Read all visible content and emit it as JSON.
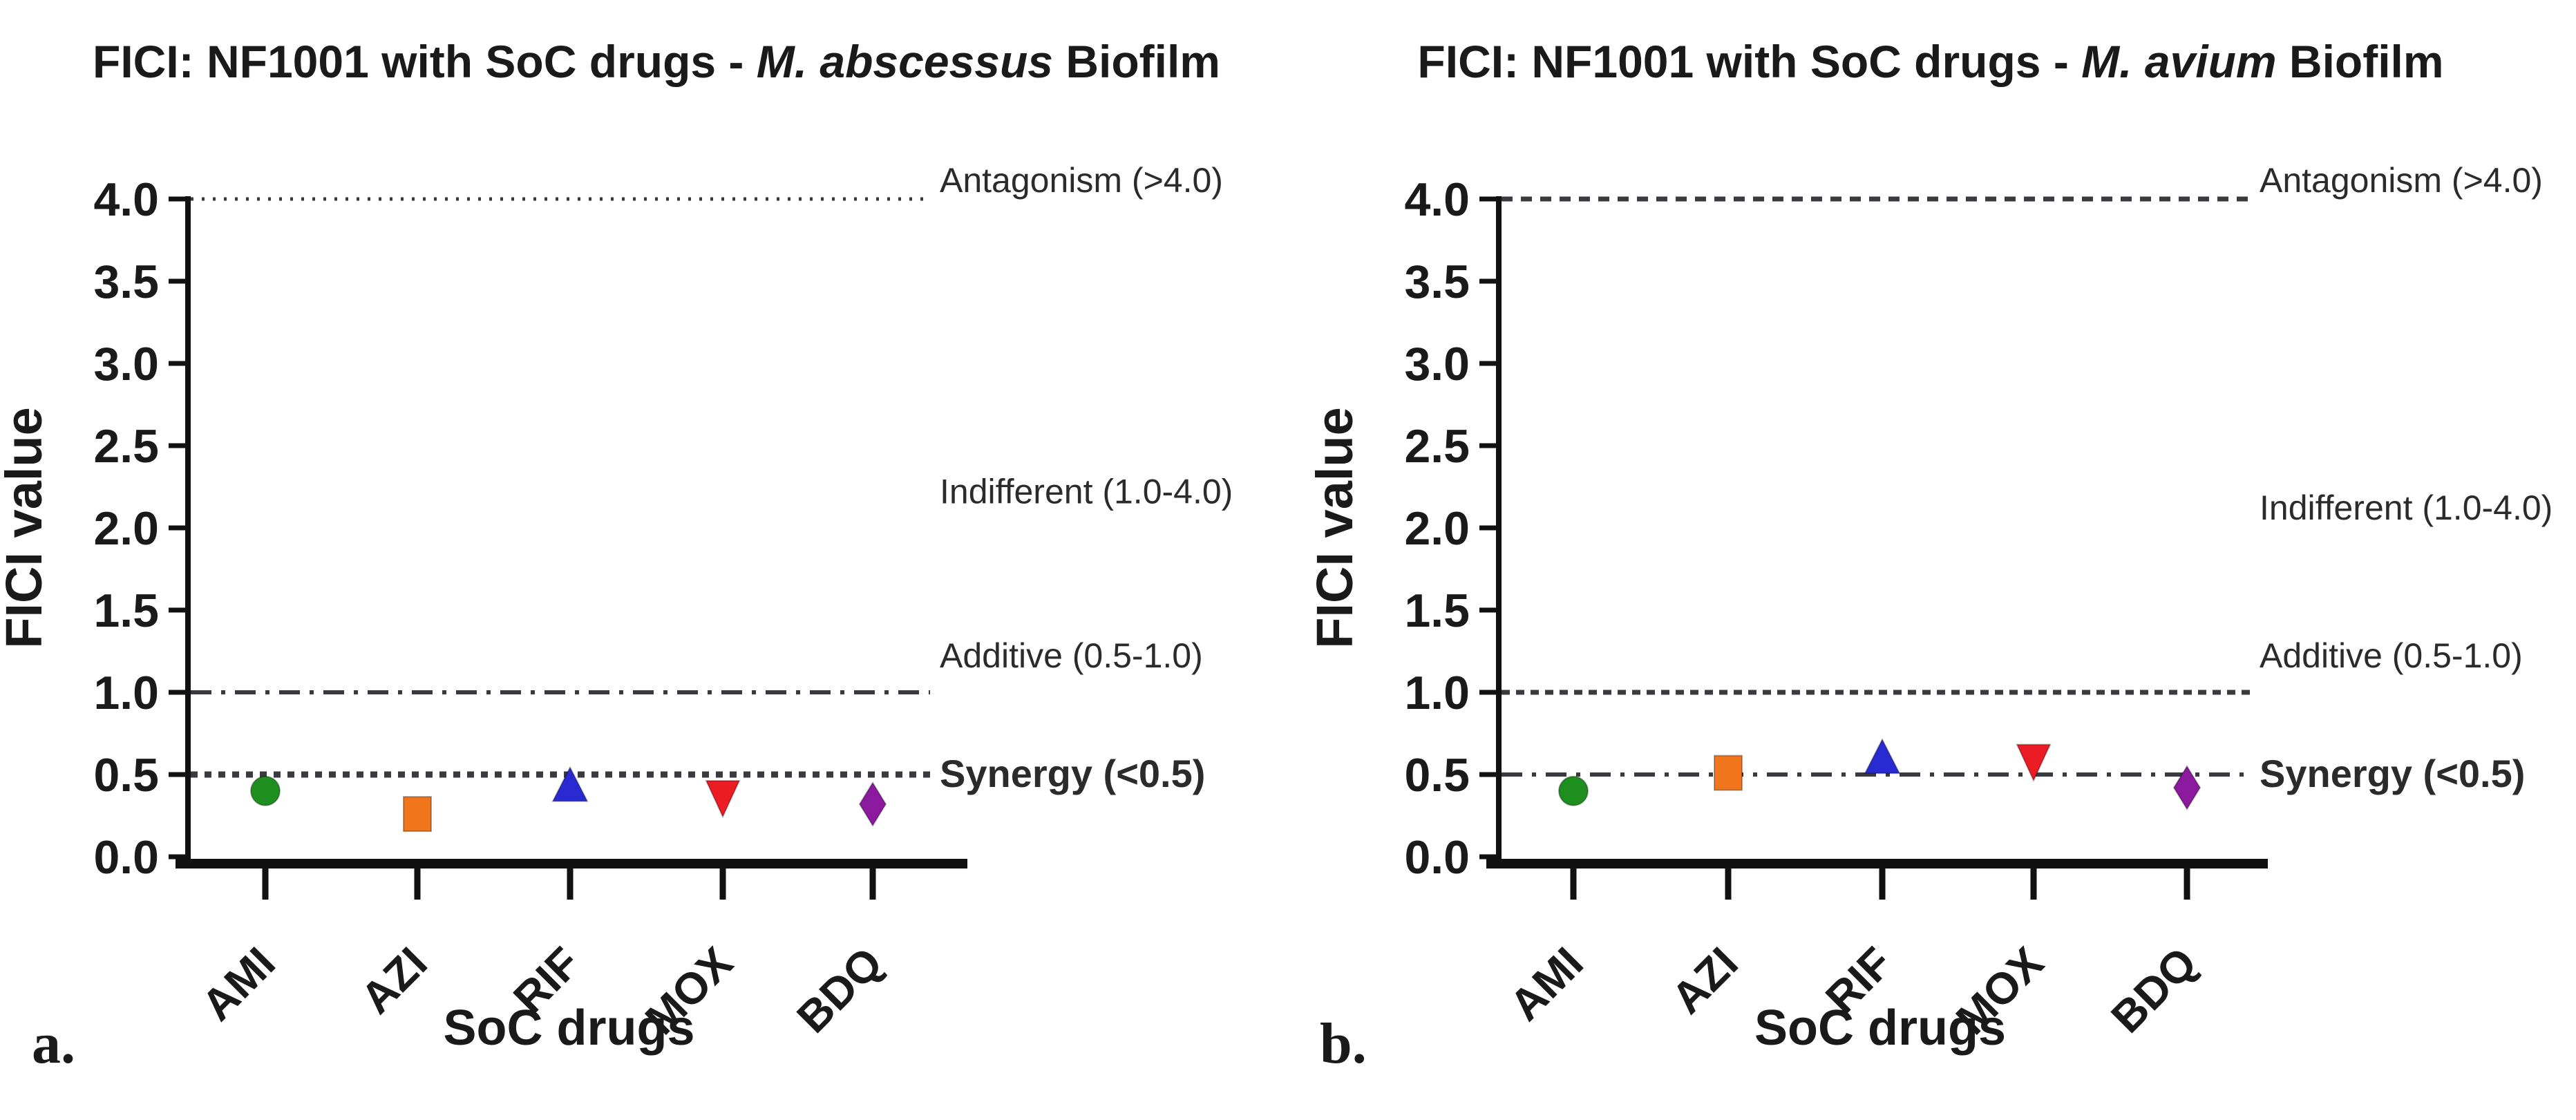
{
  "figure": {
    "background": "#ffffff",
    "text_color": "#1a1a1a",
    "annotation_color": "#2b2b2b",
    "reference_line_color": "#3a3a40",
    "axis_color": "#111111"
  },
  "chart_data": [
    {
      "type": "scatter",
      "panel_letter": "a.",
      "title": {
        "prefix": "FICI: NF1001 with SoC drugs - ",
        "italic": "M. abscessus",
        "suffix": " Biofilm",
        "full": "FICI: NF1001 with SoC drugs - M. abscessus Biofilm"
      },
      "xlabel": "SoC drugs",
      "ylabel": "FICI value",
      "ylim": [
        0.0,
        4.0
      ],
      "ytick_labels": [
        "0.0",
        "0.5",
        "1.0",
        "1.5",
        "2.0",
        "2.5",
        "3.0",
        "3.5",
        "4.0"
      ],
      "categories": [
        "AMI",
        "AZI",
        "RIF",
        "MOX",
        "BDQ"
      ],
      "series": [
        {
          "name": "FICI",
          "points": [
            {
              "category": "AMI",
              "value": 0.4,
              "marker": "circle",
              "color": "#1e8f1e"
            },
            {
              "category": "AZI",
              "value": 0.26,
              "marker": "square",
              "color": "#f0751d"
            },
            {
              "category": "RIF",
              "value": 0.43,
              "marker": "triangle-up",
              "color": "#2a2ad2"
            },
            {
              "category": "MOX",
              "value": 0.37,
              "marker": "triangle-down",
              "color": "#ec1c24"
            },
            {
              "category": "BDQ",
              "value": 0.32,
              "marker": "diamond",
              "color": "#8b1a9e"
            }
          ]
        }
      ],
      "reference_lines": [
        {
          "value": 4.0,
          "label": "Antagonism (>4.0)",
          "dash": "fine-dot",
          "bold_label": false
        },
        {
          "value": 1.0,
          "label": "Additive (0.5-1.0)",
          "dash": "dash-dot",
          "bold_label": false
        },
        {
          "value": 0.5,
          "label": "Synergy (<0.5)",
          "dash": "square-dot",
          "bold_label": true
        }
      ],
      "annotations": [
        {
          "text": "Indifferent (1.0-4.0)",
          "value": 2.15
        }
      ],
      "grid": false,
      "legend": "none"
    },
    {
      "type": "scatter",
      "panel_letter": "b.",
      "title": {
        "prefix": "FICI: NF1001 with SoC drugs - ",
        "italic": "M. avium",
        "suffix": " Biofilm",
        "full": "FICI: NF1001 with SoC drugs - M. avium Biofilm"
      },
      "xlabel": "SoC drugs",
      "ylabel": "FICI value",
      "ylim": [
        0.0,
        4.0
      ],
      "ytick_labels": [
        "0.0",
        "0.5",
        "1.0",
        "1.5",
        "2.0",
        "2.5",
        "3.0",
        "3.5",
        "4.0"
      ],
      "categories": [
        "AMI",
        "AZI",
        "RIF",
        "MOX",
        "BDQ"
      ],
      "series": [
        {
          "name": "FICI",
          "points": [
            {
              "category": "AMI",
              "value": 0.4,
              "marker": "circle",
              "color": "#1e8f1e"
            },
            {
              "category": "AZI",
              "value": 0.51,
              "marker": "square",
              "color": "#f0751d"
            },
            {
              "category": "RIF",
              "value": 0.6,
              "marker": "triangle-up",
              "color": "#2a2ad2"
            },
            {
              "category": "MOX",
              "value": 0.59,
              "marker": "triangle-down",
              "color": "#ec1c24"
            },
            {
              "category": "BDQ",
              "value": 0.42,
              "marker": "diamond",
              "color": "#8b1a9e"
            }
          ]
        }
      ],
      "reference_lines": [
        {
          "value": 4.0,
          "label": "Antagonism (>4.0)",
          "dash": "short-dash",
          "bold_label": false
        },
        {
          "value": 1.0,
          "label": "Additive (0.5-1.0)",
          "dash": "dense-dot",
          "bold_label": false
        },
        {
          "value": 0.5,
          "label": "Synergy (<0.5)",
          "dash": "dash-dot",
          "bold_label": true
        }
      ],
      "annotations": [
        {
          "text": "Indifferent (1.0-4.0)",
          "value": 2.05
        }
      ],
      "grid": false,
      "legend": "none"
    }
  ]
}
